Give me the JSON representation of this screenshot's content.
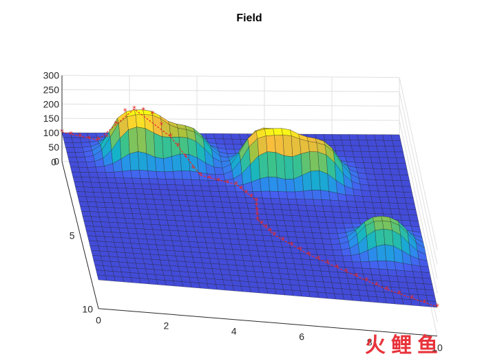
{
  "chart_data": {
    "type": "surface",
    "title": "Field",
    "xlabel": "",
    "ylabel": "",
    "zlabel": "",
    "xlim": [
      0,
      10
    ],
    "ylim": [
      0,
      10
    ],
    "zlim": [
      0,
      300
    ],
    "x_ticks": [
      "0",
      "2",
      "4",
      "6",
      "8",
      "10"
    ],
    "y_ticks": [
      "0",
      "5",
      "10"
    ],
    "z_ticks": [
      "0",
      "50",
      "100",
      "150",
      "200",
      "250",
      "300"
    ],
    "grid": true,
    "colormap": "parula",
    "base_height": 100,
    "peaks": [
      {
        "x": 2.0,
        "y": 1.5,
        "height": 255
      },
      {
        "x": 3.4,
        "y": 1.6,
        "height": 205
      },
      {
        "x": 5.8,
        "y": 2.4,
        "height": 250
      },
      {
        "x": 7.2,
        "y": 2.6,
        "height": 225
      },
      {
        "x": 8.8,
        "y": 6.6,
        "height": 195
      }
    ],
    "path_series": {
      "marker": "*",
      "color": "#e32b2b",
      "points": [
        [
          0,
          0
        ],
        [
          1,
          0.6
        ],
        [
          2,
          1.3
        ],
        [
          3,
          2.0
        ],
        [
          3.8,
          2.8
        ],
        [
          4.8,
          3.3
        ],
        [
          5.3,
          4.2
        ],
        [
          5.2,
          5.4
        ],
        [
          5.6,
          6.3
        ],
        [
          6.5,
          7.4
        ],
        [
          7.5,
          8.3
        ],
        [
          8.6,
          9.2
        ],
        [
          10,
          10
        ]
      ]
    }
  },
  "colors": {
    "parula_low": "#3e26a8",
    "parula_mid": "#19b2c4",
    "parula_high": "#f9fb15",
    "mesh": "#1a1a1a",
    "path": "#e32b2b",
    "axis_box": "#262626",
    "grid": "#dfdfdf"
  },
  "watermark": {
    "char1": "火",
    "char2": "鲤",
    "char3": "鱼"
  }
}
